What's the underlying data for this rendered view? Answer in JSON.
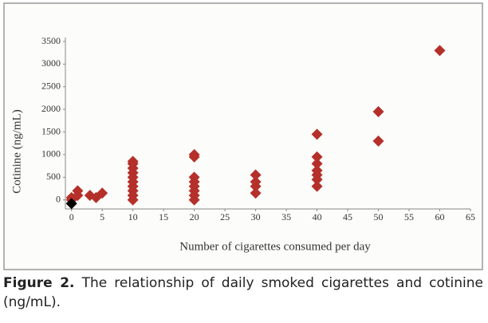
{
  "chart_data": {
    "type": "scatter",
    "x_label": "Number of cigarettes consumed per day",
    "y_label": "Cotinine (ng/mL)",
    "caption_label": "Figure 2.",
    "caption": "The relationship of daily smoked cigarettes and cotinine (ng/mL).",
    "xlim": [
      -1,
      65
    ],
    "xticks": [
      0,
      5,
      10,
      15,
      20,
      25,
      30,
      35,
      40,
      45,
      50,
      55,
      60,
      65
    ],
    "ylim": [
      -200,
      3500
    ],
    "yticks": [
      0,
      500,
      1000,
      1500,
      2000,
      2500,
      3000,
      3500
    ],
    "series": [
      {
        "color": "#b5302a",
        "x": [
          0,
          0,
          1,
          1,
          3,
          4,
          5,
          10,
          10,
          10,
          10,
          10,
          10,
          10,
          10,
          10,
          10,
          20,
          20,
          20,
          20,
          20,
          20,
          20,
          20,
          30,
          30,
          30,
          30,
          40,
          40,
          40,
          40,
          40,
          40,
          40,
          50,
          50,
          60
        ],
        "values": [
          0,
          50,
          100,
          200,
          100,
          50,
          150,
          0,
          100,
          200,
          300,
          400,
          500,
          600,
          700,
          800,
          850,
          0,
          100,
          200,
          300,
          400,
          500,
          950,
          1000,
          150,
          300,
          400,
          550,
          300,
          450,
          550,
          650,
          800,
          950,
          1450,
          1300,
          1950,
          3300
        ]
      },
      {
        "color": "#000000",
        "x": [
          0
        ],
        "values": [
          -80
        ]
      }
    ]
  }
}
